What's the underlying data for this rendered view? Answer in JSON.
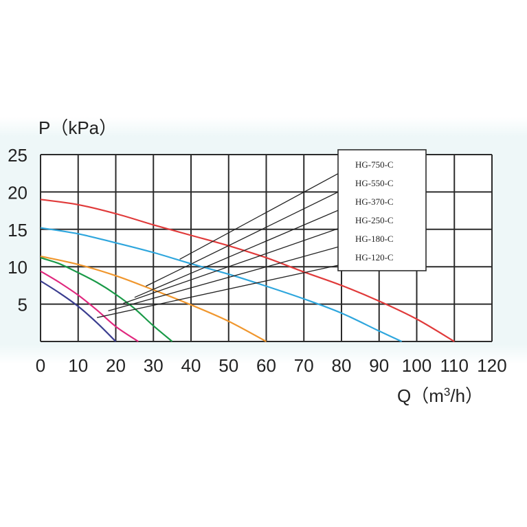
{
  "chart_data": {
    "type": "line",
    "title": "",
    "ylabel": "P（kPa）",
    "xlabel_main": "Q（m",
    "xlabel_sup": "3",
    "xlabel_tail": "/h）",
    "xlim": [
      0,
      120
    ],
    "ylim": [
      0,
      25
    ],
    "xticks": [
      "0",
      "10",
      "20",
      "30",
      "40",
      "50",
      "60",
      "70",
      "80",
      "90",
      "100",
      "110",
      "120"
    ],
    "yticks": [
      "5",
      "10",
      "15",
      "20",
      "25"
    ],
    "grid": true,
    "legend_position": "top-right",
    "series": [
      {
        "name": "HG-750-C",
        "color": "#e03a3a",
        "x": [
          0,
          10,
          20,
          30,
          40,
          50,
          60,
          70,
          80,
          90,
          100,
          110
        ],
        "y": [
          19.0,
          18.3,
          17.1,
          15.6,
          14.2,
          12.8,
          11.2,
          9.3,
          7.5,
          5.4,
          3.0,
          0
        ]
      },
      {
        "name": "HG-550-C",
        "color": "#2ea6dd",
        "x": [
          0,
          10,
          20,
          30,
          40,
          50,
          60,
          70,
          80,
          90,
          96
        ],
        "y": [
          15.2,
          14.4,
          13.2,
          11.9,
          10.4,
          9.0,
          7.4,
          5.7,
          3.8,
          1.4,
          0
        ]
      },
      {
        "name": "HG-370-C",
        "color": "#f0972e",
        "x": [
          0,
          10,
          20,
          30,
          40,
          50,
          60
        ],
        "y": [
          11.4,
          10.3,
          8.8,
          6.9,
          4.9,
          2.7,
          0
        ]
      },
      {
        "name": "HG-250-C",
        "color": "#1a9a48",
        "x": [
          0,
          5,
          10,
          15,
          20,
          25,
          30,
          35
        ],
        "y": [
          11.2,
          10.4,
          9.2,
          7.9,
          6.3,
          4.4,
          2.1,
          0
        ]
      },
      {
        "name": "HG-180-C",
        "color": "#e0287e",
        "x": [
          0,
          5,
          10,
          15,
          20,
          26
        ],
        "y": [
          9.4,
          7.9,
          6.2,
          4.2,
          2.0,
          0
        ]
      },
      {
        "name": "HG-120-C",
        "color": "#3a3d8f",
        "x": [
          0,
          5,
          10,
          15,
          20
        ],
        "y": [
          8.1,
          6.5,
          4.7,
          2.5,
          0
        ]
      }
    ],
    "annotations": [
      {
        "label": "HG-750-C",
        "x": 37,
        "y": 11.0
      },
      {
        "label": "HG-550-C",
        "x": 28,
        "y": 7.4
      },
      {
        "label": "HG-370-C",
        "x": 25,
        "y": 5.9
      },
      {
        "label": "HG-250-C",
        "x": 22,
        "y": 5.1
      },
      {
        "label": "HG-180-C",
        "x": 18,
        "y": 4.1
      },
      {
        "label": "HG-120-C",
        "x": 15,
        "y": 3.2
      }
    ]
  }
}
